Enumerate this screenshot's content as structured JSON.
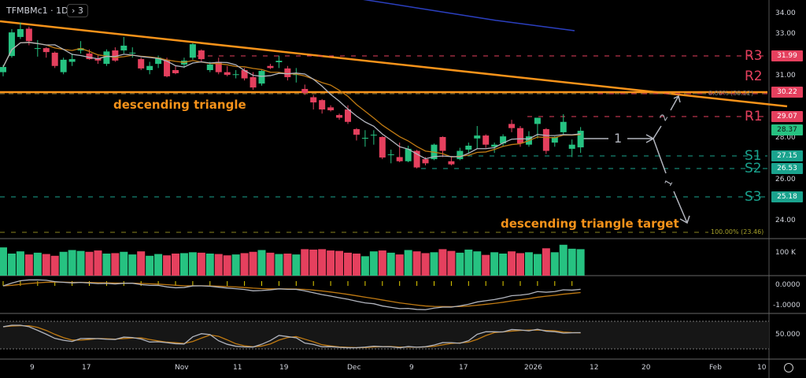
{
  "header": {
    "symbol": "TFMBMc1 · 1D",
    "collapse_icon": "chevron-right-icon",
    "indicator_count": "3"
  },
  "colors": {
    "up": "#26c281",
    "down": "#e5405e",
    "trend": "#f7931a",
    "resistance": "#e5405e",
    "support": "#1aa38e",
    "fast_ma": "#b2b5be",
    "slow_ma": "#c07a12",
    "long_ma": "#2b3fbf"
  },
  "price_axis": [
    "34.00",
    "33.00",
    "31.00",
    "28.00",
    "26.00",
    "24.00"
  ],
  "price_labels": {
    "r3": "31.99",
    "r2": "30.22",
    "r1": "29.07",
    "last": "28.37",
    "s1": "27.15",
    "s2": "26.53",
    "s3": "25.18"
  },
  "levels": {
    "r3": "R3",
    "r2": "R2",
    "r1": "R1",
    "s1": "S1",
    "s2": "S2",
    "s3": "S3"
  },
  "annotations": {
    "triangle": "descending triangle",
    "target": "descending triangle target",
    "wave1": "1",
    "wave2": "2",
    "wave1b": "1"
  },
  "fib": {
    "top": "0.00% (30.22)",
    "bottom": "100.00% (23.46)"
  },
  "volume_axis": "100 K",
  "macd_axis": [
    "0.0000",
    "-1.0000"
  ],
  "stoch_axis": "50.000",
  "time_axis": [
    "9",
    "17",
    "Nov",
    "11",
    "19",
    "Dec",
    "9",
    "17",
    "2026",
    "12",
    "20",
    "Feb",
    "10"
  ],
  "chart_data": {
    "type": "candlestick",
    "ohlc": [
      [
        31.2,
        31.55,
        31.0,
        31.45
      ],
      [
        31.98,
        33.28,
        31.9,
        33.12
      ],
      [
        32.9,
        33.6,
        32.8,
        33.28
      ],
      [
        33.3,
        33.4,
        32.5,
        32.7
      ],
      [
        32.36,
        32.75,
        31.95,
        32.36
      ],
      [
        32.36,
        32.4,
        31.9,
        32.17
      ],
      [
        32.14,
        32.2,
        31.4,
        31.5
      ],
      [
        31.2,
        31.9,
        31.1,
        31.8
      ],
      [
        31.7,
        32.1,
        31.5,
        31.83
      ],
      [
        32.25,
        32.7,
        32.1,
        32.36
      ],
      [
        32.1,
        32.3,
        31.8,
        31.83
      ],
      [
        31.87,
        32.0,
        31.6,
        31.76
      ],
      [
        31.6,
        32.3,
        31.5,
        32.2
      ],
      [
        32.25,
        32.4,
        31.7,
        31.76
      ],
      [
        32.25,
        32.9,
        32.1,
        32.48
      ],
      [
        32.14,
        32.4,
        31.9,
        32.14
      ],
      [
        31.83,
        31.9,
        31.3,
        31.38
      ],
      [
        31.3,
        31.7,
        31.1,
        31.5
      ],
      [
        31.6,
        32.0,
        31.4,
        31.9
      ],
      [
        31.8,
        31.9,
        30.95,
        31.0
      ],
      [
        31.3,
        31.5,
        31.1,
        31.15
      ],
      [
        31.57,
        31.9,
        31.4,
        31.76
      ],
      [
        31.9,
        32.6,
        31.8,
        32.55
      ],
      [
        32.25,
        32.3,
        31.7,
        31.83
      ],
      [
        31.3,
        31.7,
        31.2,
        31.57
      ],
      [
        31.7,
        31.9,
        31.1,
        31.2
      ],
      [
        31.2,
        31.5,
        31.0,
        31.07
      ],
      [
        31.1,
        31.3,
        30.9,
        31.1
      ],
      [
        31.3,
        31.4,
        30.8,
        30.9
      ],
      [
        30.96,
        31.2,
        30.35,
        30.46
      ],
      [
        30.65,
        31.3,
        30.55,
        31.26
      ],
      [
        31.5,
        31.6,
        31.35,
        31.4
      ],
      [
        31.68,
        32.0,
        31.4,
        31.75
      ],
      [
        31.38,
        31.5,
        30.8,
        30.96
      ],
      [
        31.1,
        31.4,
        30.7,
        31.1
      ],
      [
        30.39,
        30.6,
        30.1,
        30.2
      ],
      [
        29.99,
        30.1,
        29.4,
        29.74
      ],
      [
        29.85,
        29.9,
        29.2,
        29.4
      ],
      [
        29.5,
        29.6,
        29.3,
        29.36
      ],
      [
        29.13,
        29.2,
        28.9,
        29.0
      ],
      [
        29.4,
        29.6,
        28.7,
        28.8
      ],
      [
        28.45,
        28.5,
        27.9,
        28.18
      ],
      [
        28.03,
        28.4,
        27.6,
        28.03
      ],
      [
        28.18,
        28.4,
        27.7,
        28.18
      ],
      [
        28.07,
        28.1,
        27.0,
        27.08
      ],
      [
        27.23,
        27.46,
        26.8,
        27.23
      ],
      [
        27.1,
        27.8,
        26.85,
        26.9
      ],
      [
        26.9,
        27.65,
        26.85,
        27.5
      ],
      [
        27.4,
        27.45,
        26.55,
        26.6
      ],
      [
        27.0,
        27.1,
        26.7,
        26.8
      ],
      [
        27.0,
        27.75,
        26.95,
        27.7
      ],
      [
        28.07,
        28.1,
        27.1,
        27.4
      ],
      [
        26.9,
        27.1,
        26.7,
        26.75
      ],
      [
        27.0,
        27.55,
        26.95,
        27.4
      ],
      [
        27.46,
        27.8,
        27.3,
        27.65
      ],
      [
        28.0,
        28.6,
        27.5,
        28.14
      ],
      [
        28.14,
        28.2,
        27.55,
        27.7
      ],
      [
        27.6,
        27.8,
        27.3,
        27.7
      ],
      [
        27.76,
        28.2,
        27.6,
        28.1
      ],
      [
        28.7,
        28.9,
        28.3,
        28.5
      ],
      [
        28.5,
        28.6,
        27.6,
        27.76
      ],
      [
        27.7,
        28.35,
        27.6,
        28.1
      ],
      [
        28.7,
        29.0,
        28.0,
        29.0
      ],
      [
        28.45,
        28.5,
        27.25,
        27.4
      ],
      [
        27.8,
        28.1,
        27.6,
        28.07
      ],
      [
        28.3,
        29.17,
        28.2,
        28.8
      ],
      [
        27.5,
        27.95,
        27.1,
        27.7
      ],
      [
        27.57,
        28.55,
        27.3,
        28.37
      ]
    ],
    "volume_k": [
      128,
      100,
      110,
      96,
      104,
      98,
      90,
      108,
      116,
      112,
      108,
      114,
      100,
      102,
      108,
      96,
      110,
      90,
      98,
      92,
      100,
      102,
      106,
      104,
      100,
      98,
      92,
      96,
      102,
      108,
      116,
      104,
      98,
      100,
      96,
      120,
      118,
      120,
      114,
      112,
      104,
      100,
      88,
      110,
      114,
      104,
      96,
      116,
      110,
      102,
      106,
      120,
      112,
      104,
      118,
      110,
      94,
      106,
      100,
      110,
      102,
      106,
      98,
      124,
      106,
      140,
      122,
      120
    ],
    "yrange": [
      23.0,
      34.6
    ],
    "long_ma": [
      [
        0,
        35.1
      ],
      [
        0.25,
        34.9
      ],
      [
        0.5,
        34.3
      ],
      [
        0.75,
        33.7
      ],
      [
        1,
        33.2
      ]
    ]
  }
}
